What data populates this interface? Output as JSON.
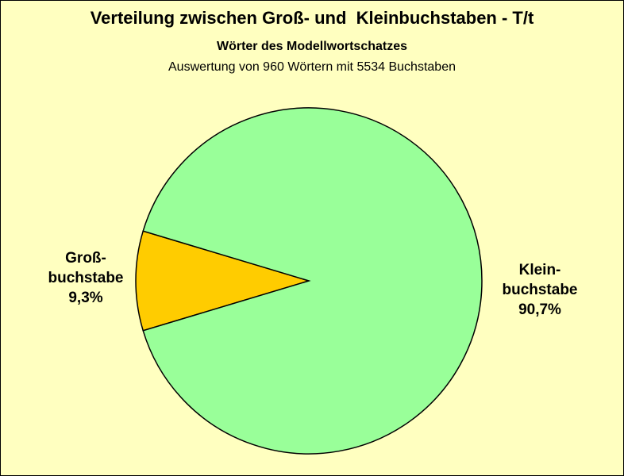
{
  "chart_data": {
    "type": "pie",
    "title": "Verteilung zwischen Groß- und  Kleinbuchstaben - T/t",
    "subtitle": "Wörter des Modellwortschatzes",
    "subtitle2": "Auswertung von 960 Wörtern mit 5534 Buchstaben",
    "slices": [
      {
        "label_lines": [
          "Groß-",
          "buchstabe"
        ],
        "value": 9.3,
        "value_label": "9,3%",
        "color": "#ffcc00"
      },
      {
        "label_lines": [
          "Klein-",
          "buchstabe"
        ],
        "value": 90.7,
        "value_label": "90,7%",
        "color": "#99ff99"
      }
    ],
    "legend": false
  }
}
